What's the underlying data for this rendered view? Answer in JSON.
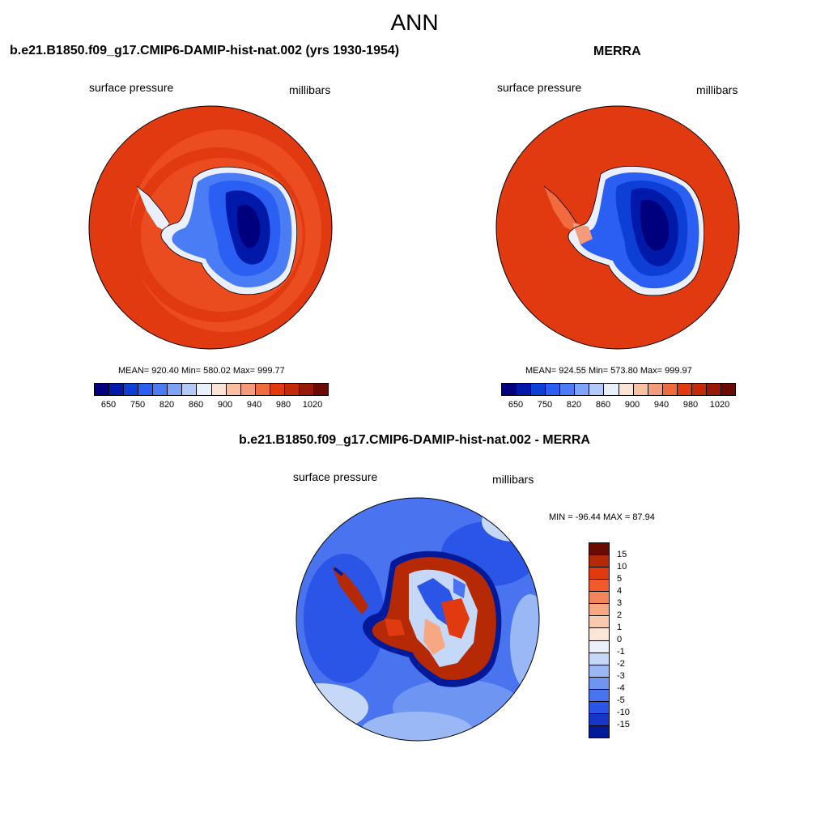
{
  "title": "ANN",
  "panels": {
    "left": {
      "title": "b.e21.B1850.f09_g17.CMIP6-DAMIP-hist-nat.002 (yrs 1930-1954)",
      "variable": "surface pressure",
      "units": "millibars",
      "stats": "MEAN= 920.40  Min= 580.02  Max= 999.77"
    },
    "right": {
      "title": "MERRA",
      "variable": "surface pressure",
      "units": "millibars",
      "stats": "MEAN= 924.55  Min= 573.80  Max= 999.97"
    },
    "diff": {
      "title": "b.e21.B1850.f09_g17.CMIP6-DAMIP-hist-nat.002 - MERRA",
      "variable": "surface pressure",
      "units": "millibars",
      "stats": "MIN = -96.44 MAX =  87.94"
    }
  },
  "colorbar_abs": {
    "colors": [
      "#00007f",
      "#0019a8",
      "#0d3fd6",
      "#2b5ef2",
      "#4a7cf5",
      "#7ea3f7",
      "#b3c9f9",
      "#e9f0fb",
      "#fbe4d6",
      "#f8c1a4",
      "#f49b79",
      "#f16b3e",
      "#e23a10",
      "#c22a08",
      "#981a05",
      "#6a0a00"
    ],
    "ticks": [
      "650",
      "750",
      "820",
      "860",
      "900",
      "940",
      "980",
      "1020"
    ]
  },
  "colorbar_diff": {
    "colors": [
      "#6a0a00",
      "#b52a05",
      "#e23a10",
      "#f15a2b",
      "#f48459",
      "#f7a883",
      "#fac9ae",
      "#fbe6d8",
      "#e9f0fb",
      "#c6d8f8",
      "#9ab8f5",
      "#6e95f2",
      "#4a74ef",
      "#2a55e6",
      "#1536c8",
      "#001a9a"
    ],
    "ticks": [
      "15",
      "10",
      "5",
      "4",
      "3",
      "2",
      "1",
      "0",
      "-1",
      "-2",
      "-3",
      "-4",
      "-5",
      "-10",
      "-15"
    ]
  }
}
